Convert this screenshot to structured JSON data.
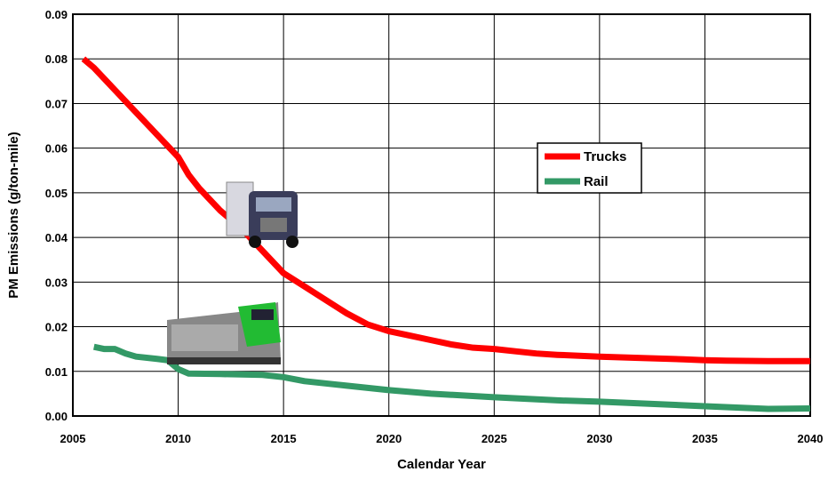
{
  "chart_data": {
    "type": "line",
    "x_label": "Calendar Year",
    "y_label": "PM Emissions (g/ton-mile)",
    "xlim": [
      2005,
      2040
    ],
    "xticks": [
      2005,
      2010,
      2015,
      2020,
      2025,
      2030,
      2035,
      2040
    ],
    "ylim": [
      0,
      0.09
    ],
    "yticks": [
      {
        "value": 0,
        "label": "0.00"
      },
      {
        "value": 0.01,
        "label": "0.01"
      },
      {
        "value": 0.02,
        "label": "0.02"
      },
      {
        "value": 0.03,
        "label": "0.03"
      },
      {
        "value": 0.04,
        "label": "0.04"
      },
      {
        "value": 0.05,
        "label": "0.05"
      },
      {
        "value": 0.06,
        "label": "0.06"
      },
      {
        "value": 0.07,
        "label": "0.07"
      },
      {
        "value": 0.08,
        "label": "0.08"
      },
      {
        "value": 0.09,
        "label": "0.09"
      }
    ],
    "grid": true,
    "legend": "upper right",
    "series": [
      {
        "name": "Trucks",
        "color": "#ff0000",
        "x": [
          2005.5,
          2006,
          2007,
          2008,
          2009,
          2010,
          2010.5,
          2011,
          2012,
          2013,
          2014,
          2015,
          2016,
          2017,
          2018,
          2019,
          2020,
          2021,
          2022,
          2023,
          2024,
          2025,
          2026,
          2027,
          2028,
          2030,
          2032,
          2034,
          2035,
          2036,
          2038,
          2040
        ],
        "values": [
          0.08,
          0.078,
          0.073,
          0.068,
          0.063,
          0.058,
          0.054,
          0.051,
          0.046,
          0.042,
          0.037,
          0.032,
          0.029,
          0.026,
          0.023,
          0.0205,
          0.019,
          0.018,
          0.017,
          0.016,
          0.0153,
          0.015,
          0.0145,
          0.014,
          0.0137,
          0.0133,
          0.013,
          0.0127,
          0.0125,
          0.0124,
          0.0123,
          0.0123
        ]
      },
      {
        "name": "Rail",
        "color": "#339966",
        "x": [
          2006,
          2006.5,
          2007,
          2007.5,
          2008,
          2009,
          2009.5,
          2010,
          2010.5,
          2012,
          2014,
          2015,
          2016,
          2018,
          2020,
          2022,
          2025,
          2028,
          2030,
          2035,
          2038,
          2040
        ],
        "values": [
          0.0155,
          0.015,
          0.015,
          0.014,
          0.0133,
          0.0128,
          0.0125,
          0.0105,
          0.0095,
          0.0094,
          0.0092,
          0.0087,
          0.0078,
          0.0068,
          0.0058,
          0.005,
          0.0042,
          0.0035,
          0.0032,
          0.0022,
          0.0016,
          0.0017
        ]
      }
    ]
  }
}
